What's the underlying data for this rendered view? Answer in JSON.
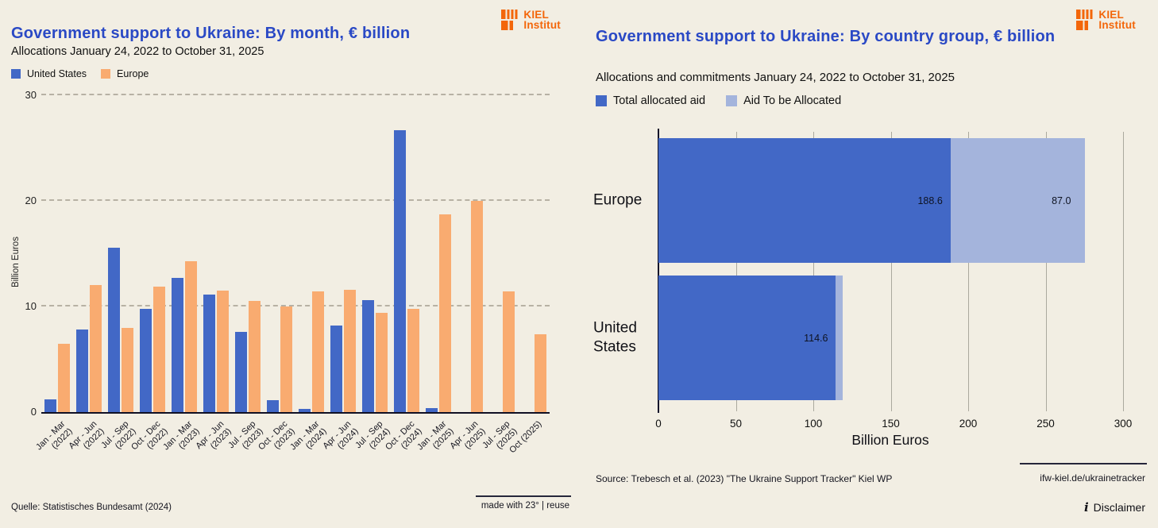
{
  "logo": {
    "line1": "KIEL",
    "line2": "Institut",
    "color": "#f3660a"
  },
  "left_panel": {
    "title": "Government support to Ukraine: By month, € billion",
    "subtitle": "Allocations January 24, 2022 to October 31, 2025",
    "legend": [
      {
        "label": "United States",
        "color": "#4268c6"
      },
      {
        "label": "Europe",
        "color": "#f9ab70"
      }
    ],
    "source": "Quelle: Statistisches Bundesamt (2024)",
    "made_with": "made with 23° | reuse",
    "chart_data": {
      "type": "bar",
      "orientation": "vertical-grouped",
      "title": "Government support to Ukraine: By month, € billion",
      "subtitle": "Allocations January 24, 2022 to October 31, 2025",
      "categories": [
        "Jan - Mar\n(2022)",
        "Apr - Jun\n(2022)",
        "Jul - Sep\n(2022)",
        "Oct - Dec\n(2022)",
        "Jan - Mar\n(2023)",
        "Apr - Jun\n(2023)",
        "Jul - Sep\n(2023)",
        "Oct - Dec\n(2023)",
        "Jan - Mar\n(2024)",
        "Apr - Jun\n(2024)",
        "Jul - Sep\n(2024)",
        "Oct - Dec\n(2024)",
        "Jan - Mar\n(2025)",
        "Apr - Jun\n(2025)",
        "Jul - Sep\n(2025)",
        "Oct (2025)"
      ],
      "series": [
        {
          "name": "United States",
          "color": "#4268c6",
          "values": [
            1.2,
            7.8,
            15.6,
            9.8,
            12.7,
            11.1,
            7.6,
            1.1,
            0.3,
            8.2,
            10.6,
            26.7,
            0.4,
            0,
            0,
            0
          ]
        },
        {
          "name": "Europe",
          "color": "#f9ab70",
          "values": [
            6.5,
            12.0,
            8.0,
            11.9,
            14.3,
            11.5,
            10.5,
            10.0,
            11.4,
            11.6,
            9.4,
            9.8,
            18.7,
            20.0,
            11.4,
            7.4
          ]
        }
      ],
      "xlabel": "",
      "ylabel": "Billion Euros",
      "ylim": [
        0,
        30
      ],
      "yticks": [
        0,
        10,
        20,
        30
      ],
      "grid": "horizontal dashed",
      "legend_position": "top-left"
    }
  },
  "right_panel": {
    "title": "Government support to Ukraine: By country group, € billion",
    "subtitle": "Allocations and commitments January 24, 2022 to October 31, 2025",
    "legend": [
      {
        "label": "Total allocated aid",
        "color": "#4268c6"
      },
      {
        "label": "Aid To be Allocated",
        "color": "#a4b4dc"
      }
    ],
    "source": "Source: Trebesch et al. (2023) \"The Ukraine Support Tracker\" Kiel WP",
    "link": "ifw-kiel.de/ukrainetracker",
    "disclaimer_label": "Disclaimer",
    "info_icon": "i",
    "chart_data": {
      "type": "bar",
      "orientation": "horizontal-stacked",
      "title": "Government support to Ukraine: By country group, € billion",
      "subtitle": "Allocations and commitments January 24, 2022 to October 31, 2025",
      "categories": [
        "Europe",
        "United States"
      ],
      "series": [
        {
          "name": "Total allocated aid",
          "color": "#4268c6",
          "values": [
            188.6,
            114.6
          ],
          "data_labels": [
            "188.6",
            "114.6"
          ]
        },
        {
          "name": "Aid To be Allocated",
          "color": "#a4b4dc",
          "values": [
            87.0,
            4.2
          ],
          "data_labels": [
            "87.0",
            ""
          ]
        }
      ],
      "xlabel": "Billion Euros",
      "xlim": [
        0,
        300
      ],
      "xticks": [
        0,
        50,
        100,
        150,
        200,
        250,
        300
      ],
      "grid": "vertical solid",
      "legend_position": "top-left"
    }
  }
}
